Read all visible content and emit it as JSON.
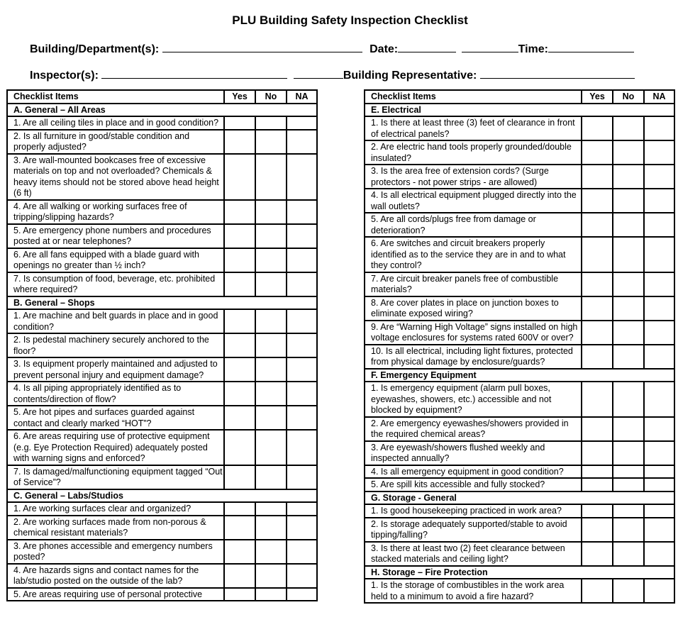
{
  "title": "PLU Building Safety Inspection Checklist",
  "header": {
    "building_label": "Building/Department(s):",
    "date_label": "Date:",
    "time_label": "Time:",
    "inspector_label": "Inspector(s):",
    "rep_label": "Building Representative:"
  },
  "columns": {
    "item": "Checklist Items",
    "yes": "Yes",
    "no": "No",
    "na": "NA"
  },
  "left_sections": [
    {
      "title": "A. General – All Areas",
      "items": [
        "1. Are all ceiling tiles in place and in good condition?",
        "2. Is all furniture in good/stable condition and properly adjusted?",
        "3. Are wall-mounted bookcases free of excessive materials on top and not overloaded? Chemicals & heavy items should not be stored above head height (6 ft)",
        "4. Are all walking or working surfaces free of tripping/slipping hazards?",
        "5. Are emergency phone numbers and procedures posted at or near telephones?",
        "6. Are all fans equipped with a blade guard with openings no greater than ½ inch?",
        "7. Is consumption of food, beverage, etc. prohibited where required?"
      ]
    },
    {
      "title": "B. General – Shops",
      "items": [
        "1. Are machine and belt guards in place and in good condition?",
        "2. Is pedestal machinery securely anchored to the floor?",
        "3. Is equipment properly maintained and adjusted to prevent personal injury and equipment damage?",
        "4. Is all piping appropriately identified as to contents/direction of flow?",
        "5. Are hot pipes and surfaces guarded against contact and clearly marked “HOT”?",
        "6. Are areas requiring use of protective equipment (e.g. Eye Protection Required) adequately posted with warning signs and enforced?",
        "7. Is damaged/malfunctioning equipment tagged “Out of Service”?"
      ]
    },
    {
      "title": "C. General – Labs/Studios",
      "items": [
        "1. Are working surfaces clear and organized?",
        "2. Are working surfaces made from non-porous & chemical resistant materials?",
        "3. Are phones accessible and emergency numbers posted?",
        "4. Are hazards signs and contact names for the lab/studio posted on the outside of the lab?",
        "5. Are areas requiring use of personal protective"
      ]
    }
  ],
  "right_sections": [
    {
      "title": "E. Electrical",
      "items": [
        "1. Is there at least three (3) feet of clearance in front of electrical panels?",
        "2. Are electric hand tools properly grounded/double insulated?",
        "3. Is the area free of extension cords? (Surge protectors - not power strips - are allowed)",
        "4. Is all electrical equipment plugged directly into the wall outlets?",
        "5. Are all cords/plugs free from damage or deterioration?",
        "6. Are switches and circuit breakers properly identified as to the service they are in and to what they control?",
        "7. Are circuit breaker panels free of combustible materials?",
        "8. Are cover plates in place on junction boxes to eliminate exposed wiring?",
        "9. Are “Warning High Voltage” signs installed on high voltage enclosures for systems rated 600V or over?",
        "10. Is all electrical, including light fixtures, protected from physical damage by enclosure/guards?"
      ]
    },
    {
      "title": "F. Emergency Equipment",
      "items": [
        "1. Is emergency equipment (alarm pull boxes, eyewashes, showers, etc.) accessible and not blocked by equipment?",
        "2. Are emergency eyewashes/showers provided in the required chemical areas?",
        "3. Are eyewash/showers flushed weekly and inspected annually?",
        "4. Is all emergency equipment in good condition?",
        "5. Are spill kits accessible and fully stocked?"
      ]
    },
    {
      "title": "G. Storage - General",
      "items": [
        "1. Is good housekeeping practiced in work area?",
        "2. Is storage adequately supported/stable to avoid tipping/falling?",
        "3. Is there at least two (2) feet clearance between stacked materials and ceiling light?"
      ]
    },
    {
      "title": "H. Storage – Fire Protection",
      "items": [
        "1. Is the storage of combustibles in the work area held to a minimum to avoid a fire hazard?"
      ]
    }
  ]
}
